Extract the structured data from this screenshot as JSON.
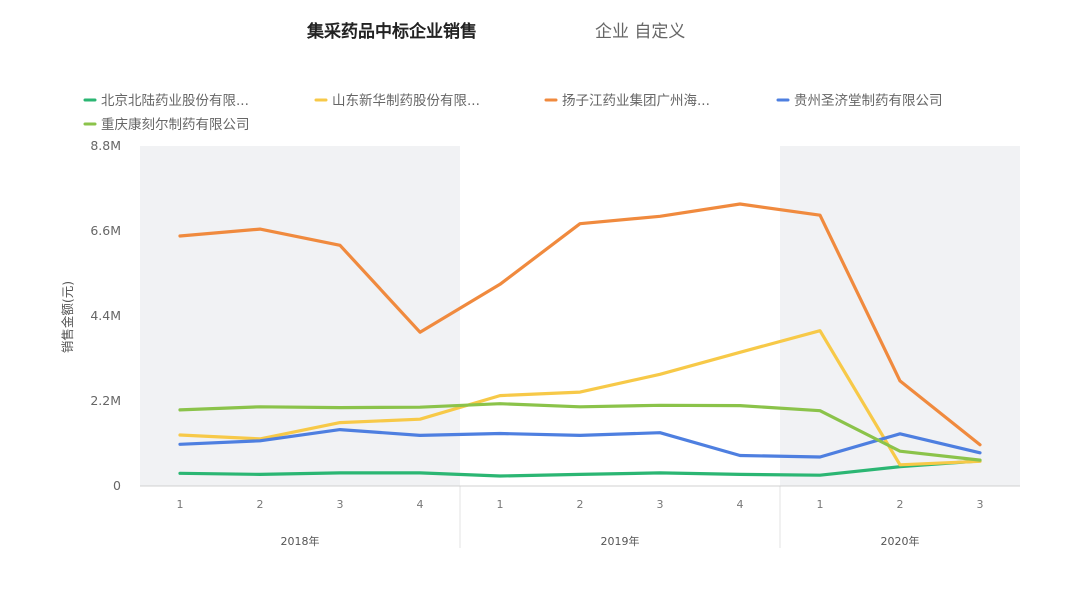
{
  "chart_data": {
    "type": "line",
    "title": "集采药品中标企业销售",
    "subtitle": "企业 自定义",
    "ylabel": "销售金额(元)",
    "xlabel": "",
    "ylim": [
      0,
      8800000
    ],
    "y_ticks": [
      {
        "value": 0,
        "label": "0"
      },
      {
        "value": 2200000,
        "label": "2.2M"
      },
      {
        "value": 4400000,
        "label": "4.4M"
      },
      {
        "value": 6600000,
        "label": "6.6M"
      },
      {
        "value": 8800000,
        "label": "8.8M"
      }
    ],
    "categories": [
      "1",
      "2",
      "3",
      "4",
      "1",
      "2",
      "3",
      "4",
      "1",
      "2",
      "3"
    ],
    "groups": [
      {
        "label": "2018年",
        "count": 4,
        "shaded": true
      },
      {
        "label": "2019年",
        "count": 4,
        "shaded": false
      },
      {
        "label": "2020年",
        "count": 3,
        "shaded": true
      }
    ],
    "grid": false,
    "legend_position": "top-left",
    "series": [
      {
        "name": "北京北陆药业股份有限...",
        "color": "#2bb673",
        "values": [
          330000,
          300000,
          340000,
          340000,
          260000,
          300000,
          340000,
          300000,
          280000,
          500000,
          650000
        ]
      },
      {
        "name": "山东新华制药股份有限...",
        "color": "#f7c948",
        "values": [
          1320000,
          1220000,
          1640000,
          1730000,
          2340000,
          2430000,
          2890000,
          3460000,
          4020000,
          550000,
          640000
        ]
      },
      {
        "name": "扬子江药业集团广州海...",
        "color": "#f08a3e",
        "values": [
          6470000,
          6650000,
          6230000,
          3980000,
          5220000,
          6790000,
          6980000,
          7300000,
          7010000,
          2720000,
          1070000
        ]
      },
      {
        "name": "贵州圣济堂制药有限公司",
        "color": "#4e7fe0",
        "values": [
          1080000,
          1170000,
          1460000,
          1310000,
          1360000,
          1310000,
          1380000,
          790000,
          750000,
          1350000,
          860000
        ]
      },
      {
        "name": "重庆康刻尔制药有限公司",
        "color": "#8bc34a",
        "values": [
          1970000,
          2050000,
          2030000,
          2040000,
          2130000,
          2050000,
          2090000,
          2080000,
          1950000,
          900000,
          670000
        ]
      }
    ]
  }
}
